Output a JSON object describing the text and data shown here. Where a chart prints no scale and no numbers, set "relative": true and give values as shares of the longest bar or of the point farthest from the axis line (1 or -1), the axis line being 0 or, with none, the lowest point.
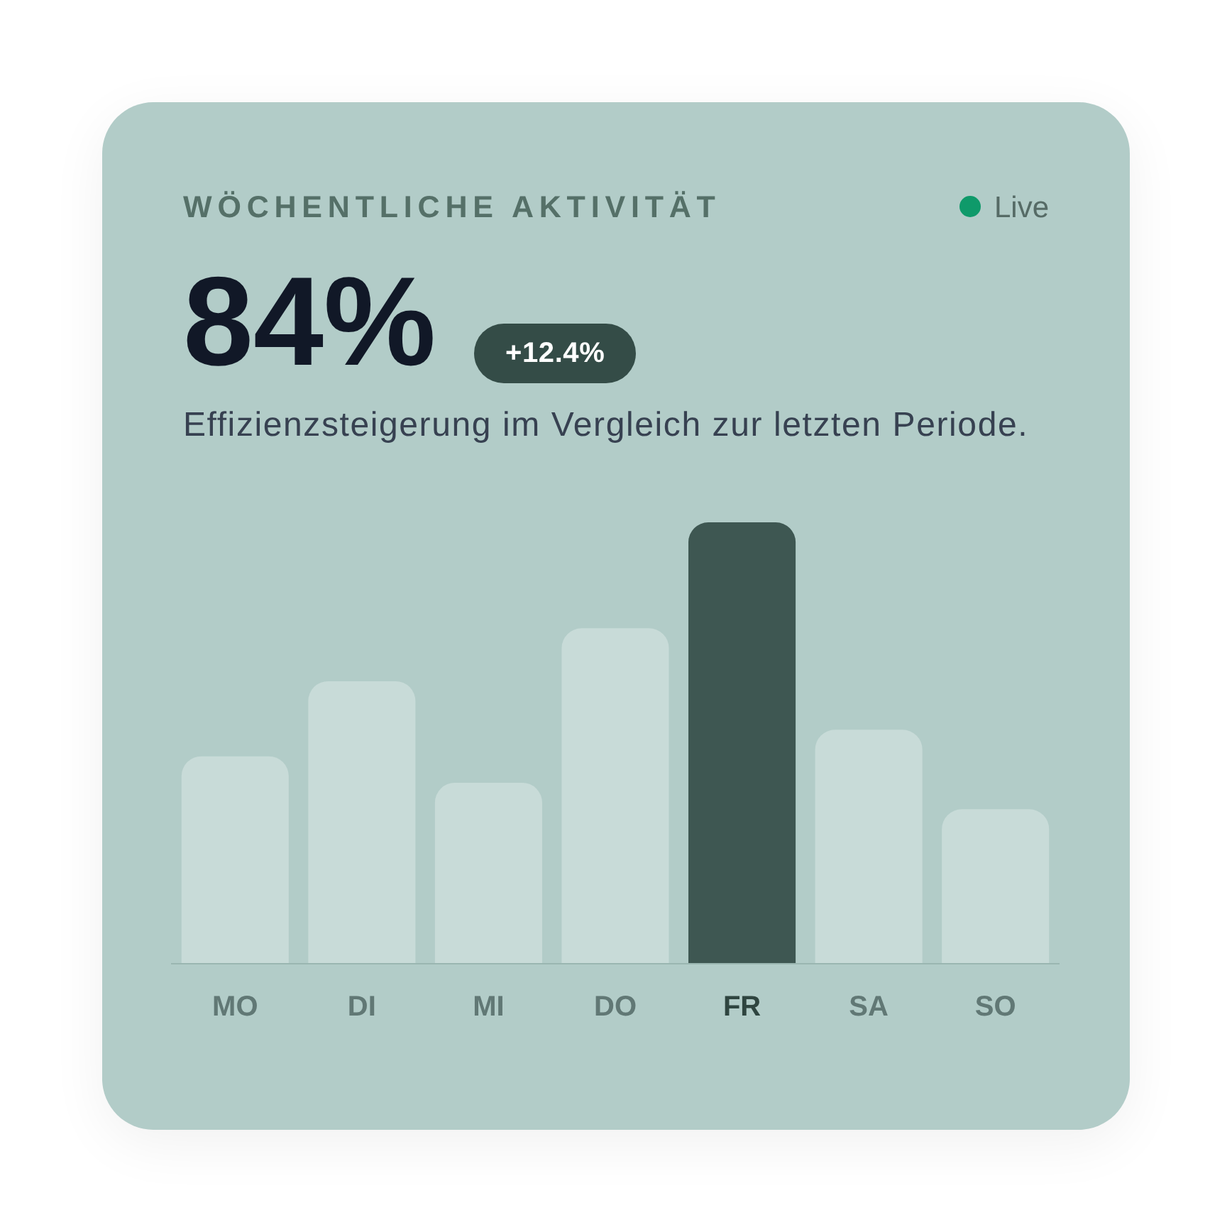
{
  "chart_data": {
    "type": "bar",
    "title": "WÖCHENTLICHE AKTIVITÄT",
    "subtitle": "Effizienzsteigerung im Vergleich zur letzten Periode.",
    "annotations": [
      "Live",
      "84%",
      "+12.4%"
    ],
    "categories": [
      "MO",
      "DI",
      "MI",
      "DO",
      "FR",
      "SA",
      "SO"
    ],
    "values": [
      0.47,
      0.64,
      0.41,
      0.76,
      1,
      0.53,
      0.35
    ],
    "colors": [
      "#c8dbd8",
      "#c8dbd8",
      "#c8dbd8",
      "#c8dbd8",
      "#3e5752",
      "#c8dbd8",
      "#c8dbd8"
    ],
    "relative": true,
    "grid": false,
    "legend": false
  }
}
